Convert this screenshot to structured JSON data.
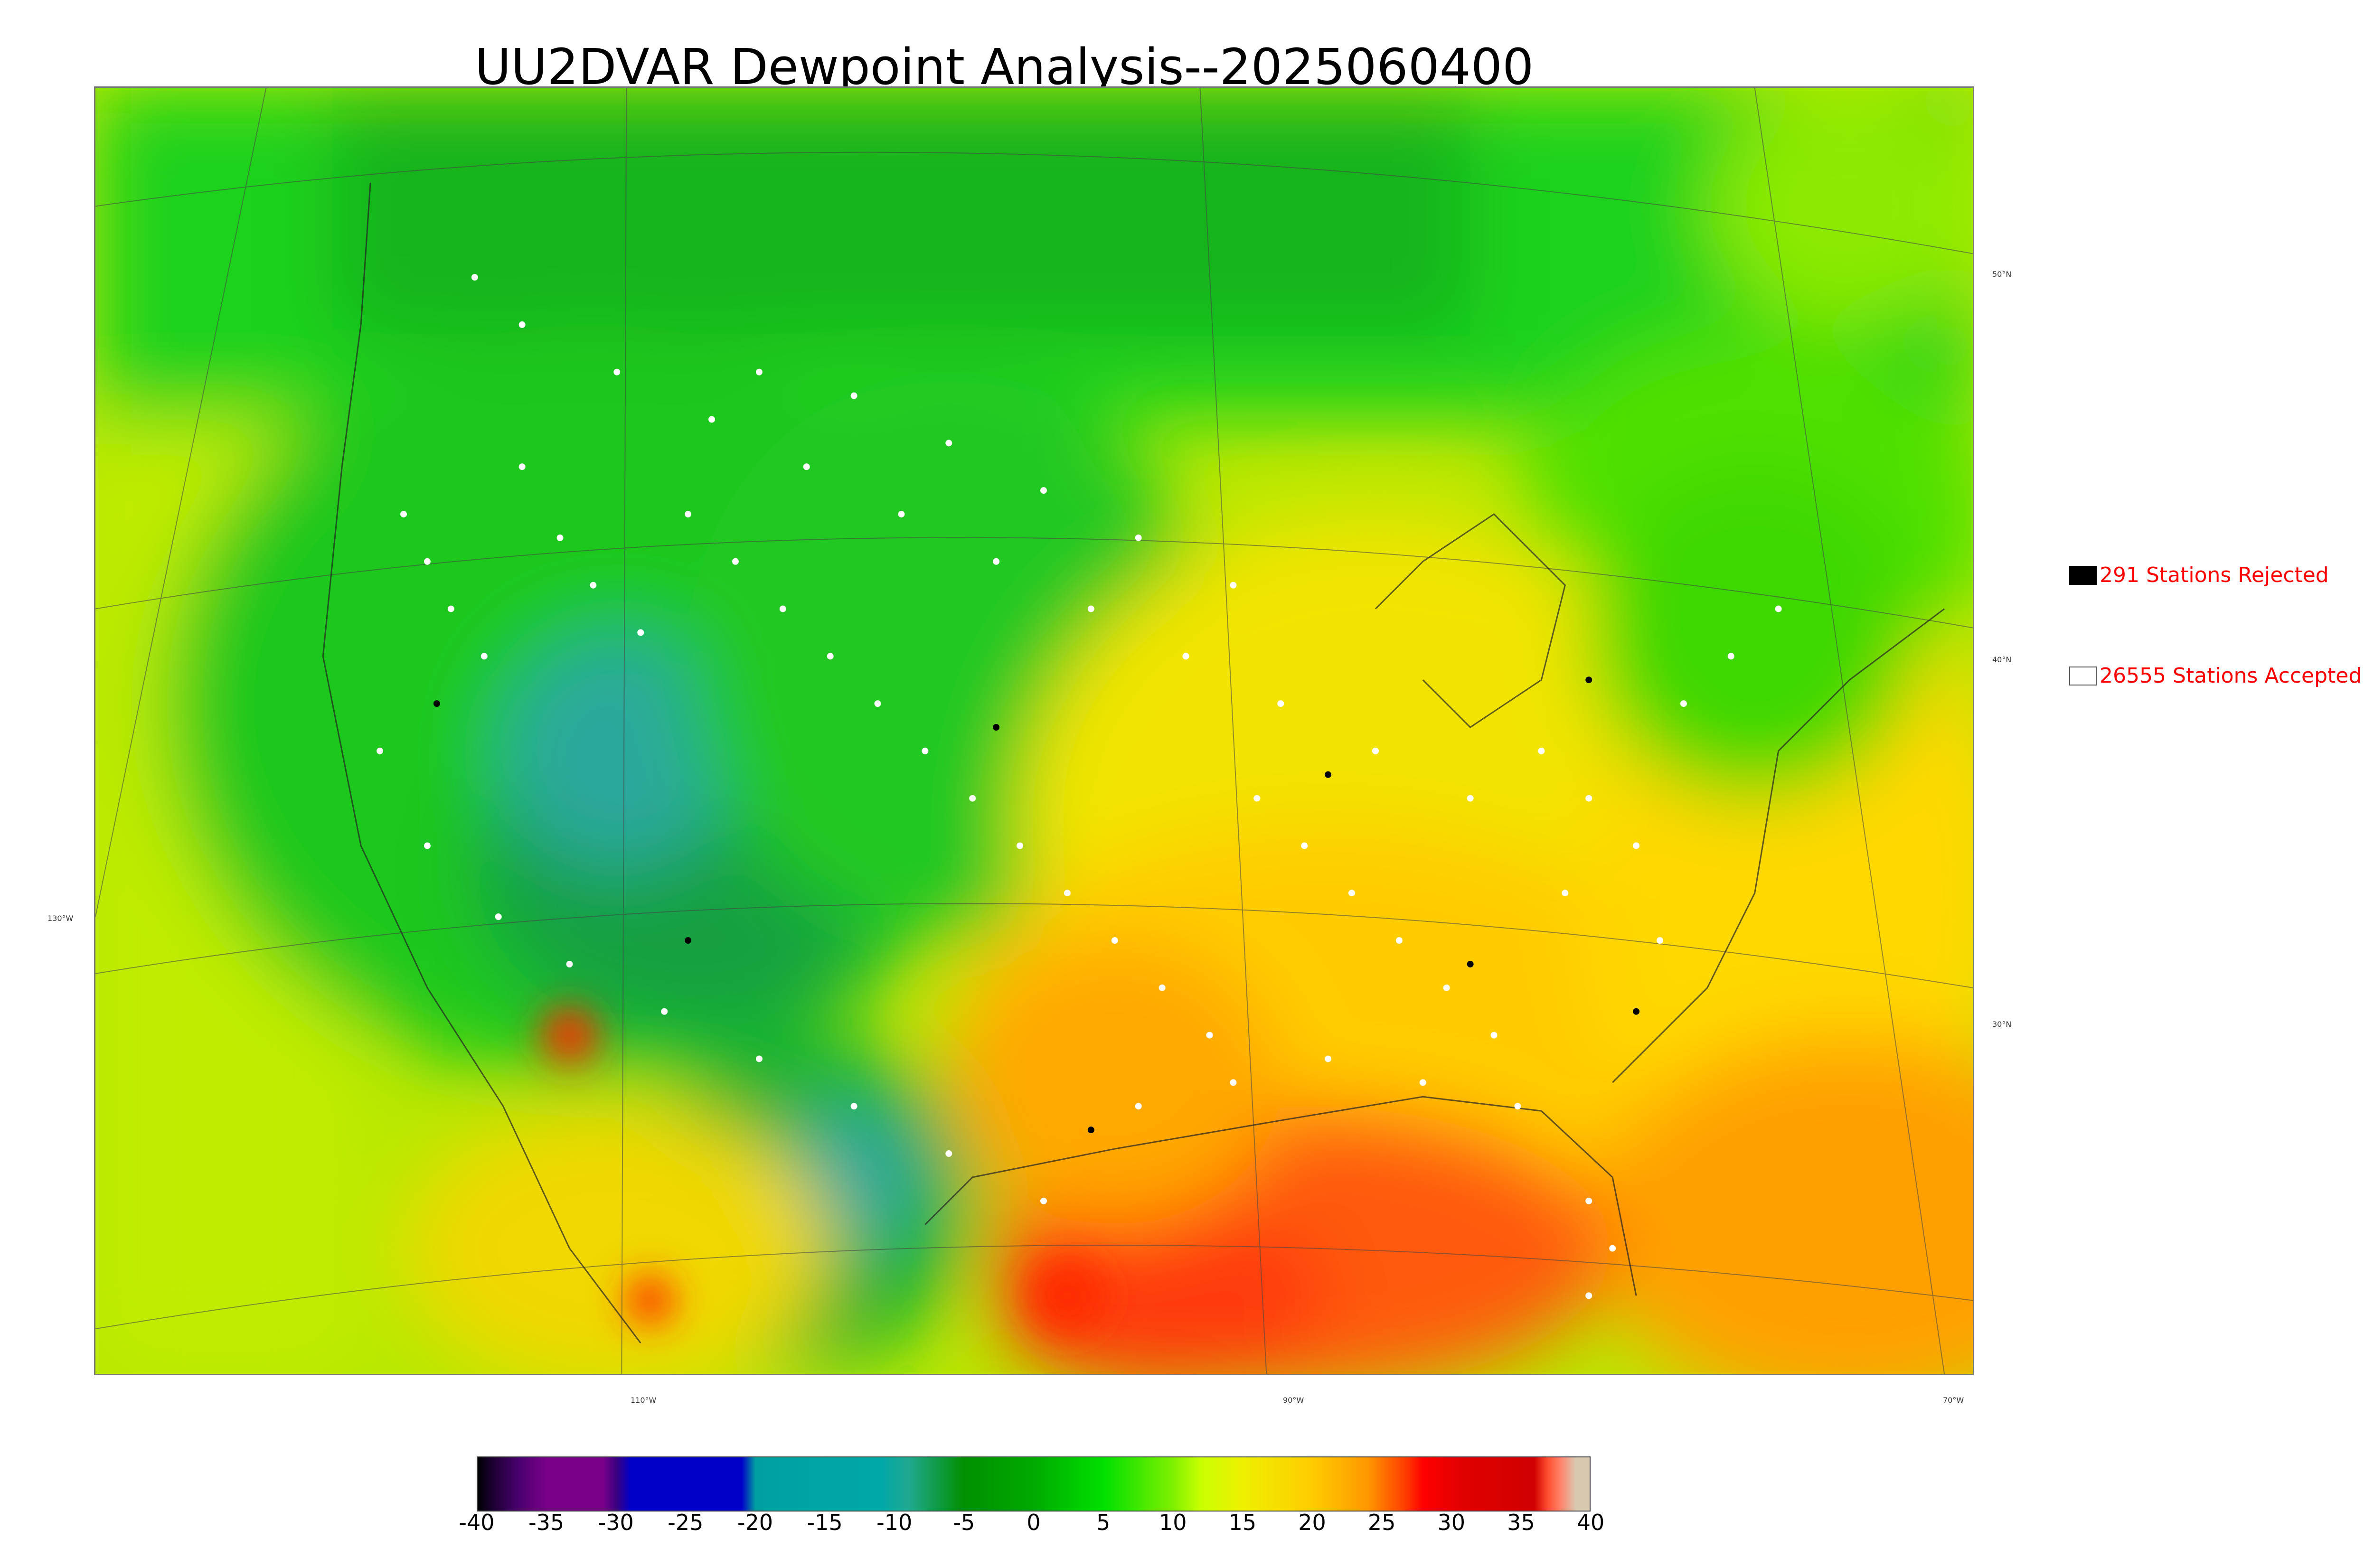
{
  "title": "UU2DVAR Dewpoint Analysis--2025060400",
  "latitude_labels": [
    "50°N",
    "40°N",
    "30°N"
  ],
  "longitude_labels": [
    "130°W",
    "110°W",
    "90°W",
    "70°W"
  ],
  "legend": {
    "rejected": {
      "label": "291 Stations Rejected",
      "swatch_color": "#000000"
    },
    "accepted": {
      "label": "26555 Stations Accepted",
      "swatch_color": "#ffffff"
    }
  },
  "colorbar": {
    "tick_labels": [
      "-40",
      "-35",
      "-30",
      "-25",
      "-20",
      "-15",
      "-10",
      "-5",
      "0",
      "5",
      "10",
      "15",
      "20",
      "25",
      "30",
      "35",
      "40"
    ],
    "min": -40,
    "max": 40,
    "color_stops": [
      {
        "value": -40,
        "color": "#000000"
      },
      {
        "value": -39,
        "color": "#1a0030"
      },
      {
        "value": -37,
        "color": "#4b0070"
      },
      {
        "value": -35,
        "color": "#7a008a"
      },
      {
        "value": -31,
        "color": "#7a008a"
      },
      {
        "value": -30,
        "color": "#3a0080"
      },
      {
        "value": -29,
        "color": "#0000c8"
      },
      {
        "value": -21,
        "color": "#0000c8"
      },
      {
        "value": -20,
        "color": "#00a0a0"
      },
      {
        "value": -11,
        "color": "#00a8a8"
      },
      {
        "value": -9,
        "color": "#20a890"
      },
      {
        "value": -5,
        "color": "#009000"
      },
      {
        "value": 0,
        "color": "#00aa00"
      },
      {
        "value": 5,
        "color": "#00e000"
      },
      {
        "value": 10,
        "color": "#7ef000"
      },
      {
        "value": 12,
        "color": "#c8ff00"
      },
      {
        "value": 15,
        "color": "#eef000"
      },
      {
        "value": 20,
        "color": "#ffcc00"
      },
      {
        "value": 24,
        "color": "#ff9900"
      },
      {
        "value": 27,
        "color": "#ff3300"
      },
      {
        "value": 28,
        "color": "#ff0000"
      },
      {
        "value": 31,
        "color": "#e00000"
      },
      {
        "value": 36,
        "color": "#d00000"
      },
      {
        "value": 37,
        "color": "#ff5030"
      },
      {
        "value": 38,
        "color": "#ff8870"
      },
      {
        "value": 39,
        "color": "#d8c8b0"
      },
      {
        "value": 40,
        "color": "#d8c8b0"
      }
    ]
  },
  "colors": {
    "cool_north": "#1ec81e",
    "rockies": "#12a03c",
    "teal_low": "#2aa89c",
    "warm_south": "#ffbb10",
    "gulf_hot": "#ff4a10",
    "ocean_yellow": "#e6ee00",
    "station_accepted": "#ffffff",
    "station_rejected": "#000000",
    "title_text": "#000000",
    "legend_text": "#ff0000"
  }
}
